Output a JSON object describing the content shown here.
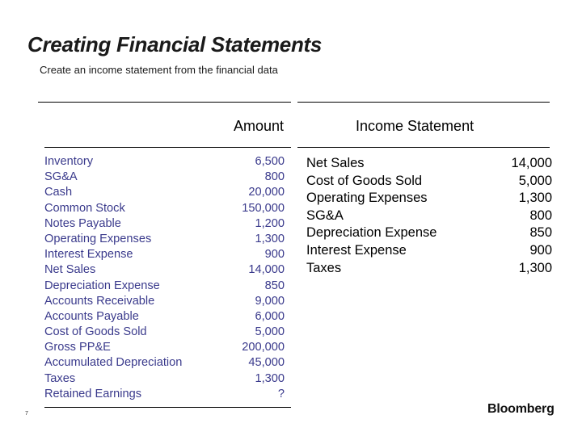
{
  "slide": {
    "title": "Creating Financial Statements",
    "subtitle": "Create an income statement from the financial data",
    "page_number": "7",
    "logo": "Bloomberg"
  },
  "left_table": {
    "header": "Amount",
    "rows": [
      {
        "label": "Inventory",
        "value": "6,500"
      },
      {
        "label": "SG&A",
        "value": "800"
      },
      {
        "label": "Cash",
        "value": "20,000"
      },
      {
        "label": "Common Stock",
        "value": "150,000"
      },
      {
        "label": "Notes Payable",
        "value": "1,200"
      },
      {
        "label": "Operating Expenses",
        "value": "1,300"
      },
      {
        "label": "Interest Expense",
        "value": "900"
      },
      {
        "label": "Net Sales",
        "value": "14,000"
      },
      {
        "label": "Depreciation Expense",
        "value": "850"
      },
      {
        "label": "Accounts Receivable",
        "value": "9,000"
      },
      {
        "label": "Accounts Payable",
        "value": "6,000"
      },
      {
        "label": "Cost of Goods Sold",
        "value": "5,000"
      },
      {
        "label": "Gross PP&E",
        "value": "200,000"
      },
      {
        "label": "Accumulated Depreciation",
        "value": "45,000"
      },
      {
        "label": "Taxes",
        "value": "1,300"
      },
      {
        "label": "Retained Earnings",
        "value": "?"
      }
    ]
  },
  "income_statement": {
    "header": "Income Statement",
    "rows": [
      {
        "label": "Net Sales",
        "value": "14,000"
      },
      {
        "label": "Cost of Goods Sold",
        "value": "5,000"
      },
      {
        "label": "Operating Expenses",
        "value": "1,300"
      },
      {
        "label": "SG&A",
        "value": "800"
      },
      {
        "label": "Depreciation Expense",
        "value": "850"
      },
      {
        "label": "Interest Expense",
        "value": "900"
      },
      {
        "label": "Taxes",
        "value": "1,300"
      }
    ]
  }
}
